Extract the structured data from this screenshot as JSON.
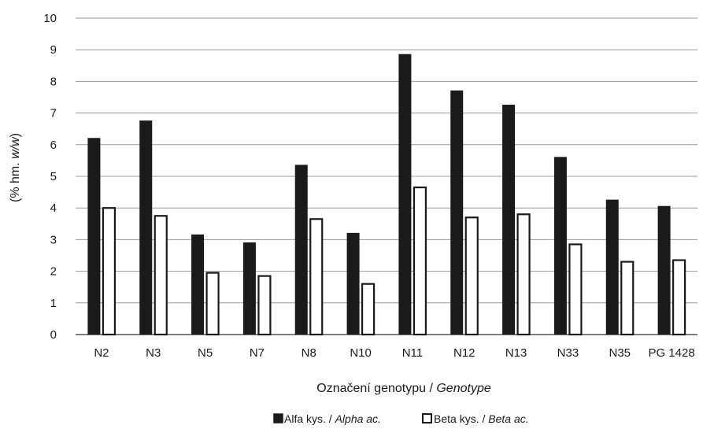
{
  "chart_data": {
    "type": "bar",
    "categories": [
      "N2",
      "N3",
      "N5",
      "N7",
      "N8",
      "N10",
      "N11",
      "N12",
      "N13",
      "N33",
      "N35",
      "PG 1428"
    ],
    "series": [
      {
        "name": "Alfa kys. / Alpha ac.",
        "name_plain": "Alfa kys. / ",
        "name_italic": "Alpha ac.",
        "color": "#1a1a1a",
        "fill": "#1a1a1a",
        "values": [
          6.2,
          6.75,
          3.15,
          2.9,
          5.35,
          3.2,
          8.85,
          7.7,
          7.25,
          5.6,
          4.25,
          4.05
        ]
      },
      {
        "name": "Beta kys. / Beta ac.",
        "name_plain": "Beta kys. / ",
        "name_italic": "Beta ac.",
        "color": "#1a1a1a",
        "fill": "#ffffff",
        "values": [
          4.0,
          3.75,
          1.95,
          1.85,
          3.65,
          1.6,
          4.65,
          3.7,
          3.8,
          2.85,
          2.3,
          2.35
        ]
      }
    ],
    "ylim": [
      0,
      10
    ],
    "yticks": [
      0,
      1,
      2,
      3,
      4,
      5,
      6,
      7,
      8,
      9,
      10
    ],
    "ylabel_plain": "(% hm. ",
    "ylabel_italic": "w/w",
    "ylabel_close": ")",
    "xlabel_plain": "Označení genotypu / ",
    "xlabel_italic": "Genotype",
    "grid": true,
    "legend_position": "bottom-center"
  }
}
